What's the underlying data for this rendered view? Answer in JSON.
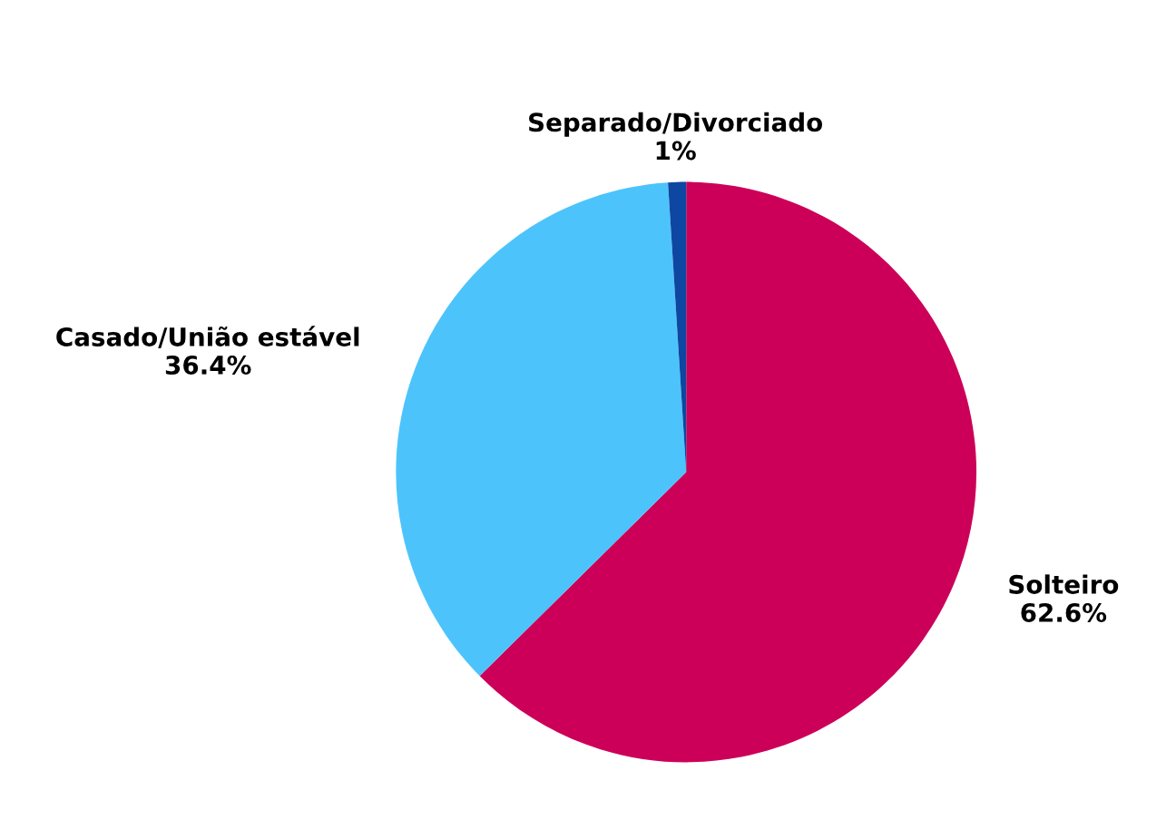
{
  "chart_data": {
    "type": "pie",
    "categories": [
      "Solteiro",
      "Casado/União estável",
      "Separado/Divorciado"
    ],
    "values": [
      62.6,
      36.4,
      1
    ],
    "value_labels": [
      "62.6%",
      "36.4%",
      "1%"
    ],
    "colors": [
      "#cc0058",
      "#4cc4fb",
      "#0d47a1"
    ],
    "legend": false
  }
}
